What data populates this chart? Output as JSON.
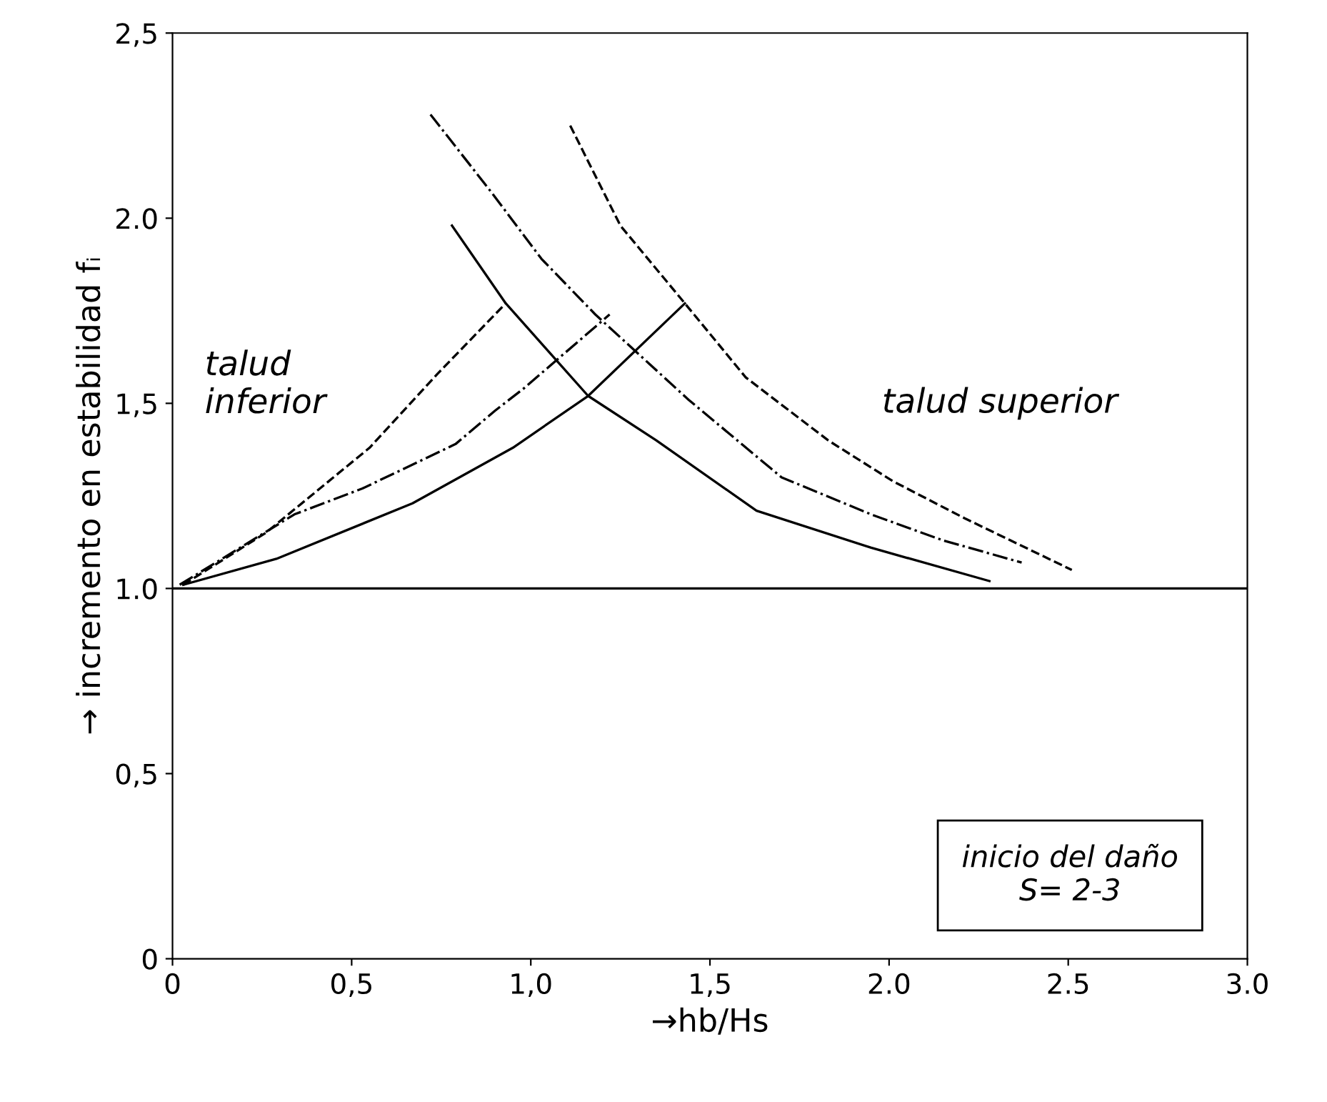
{
  "chart_data": {
    "type": "line",
    "xlabel": "→hb/Hs",
    "ylabel": "→ incremento en estabilidad fᵢ",
    "xlim": [
      0,
      3.0
    ],
    "ylim": [
      0,
      2.5
    ],
    "xticks": [
      0,
      {
        "value": 0.5,
        "label": "0,5"
      },
      {
        "value": 1.0,
        "label": "1,0"
      },
      {
        "value": 1.5,
        "label": "1,5"
      },
      {
        "value": 2.0,
        "label": "2.0"
      },
      {
        "value": 2.5,
        "label": "2.5"
      },
      {
        "value": 3.0,
        "label": "3.0"
      }
    ],
    "yticks": [
      0,
      {
        "value": 0.5,
        "label": "0,5"
      },
      {
        "value": 1.0,
        "label": "1.0"
      },
      {
        "value": 1.5,
        "label": "1,5"
      },
      {
        "value": 2.0,
        "label": "2.0"
      },
      {
        "value": 2.5,
        "label": "2,5"
      }
    ],
    "grid": false,
    "legend": false,
    "marker": "none",
    "ref_lines": [
      {
        "axis": "y",
        "value": 1.0,
        "color": "#000000"
      }
    ],
    "annotations": [
      "talud\ninferior",
      "talud superior",
      "inicio del daño\nS= 2-3"
    ],
    "series": [
      {
        "color": "#000000",
        "line_style": "solid",
        "x": [
          0.03,
          0.29,
          0.67,
          0.95,
          1.16,
          1.43
        ],
        "values": [
          1.01,
          1.08,
          1.23,
          1.38,
          1.52,
          1.77
        ]
      },
      {
        "color": "#000000",
        "line_style": "dashdot",
        "x": [
          0.02,
          0.34,
          0.53,
          0.79,
          0.9,
          0.98,
          1.22
        ],
        "values": [
          1.01,
          1.2,
          1.27,
          1.39,
          1.48,
          1.54,
          1.74
        ]
      },
      {
        "color": "#000000",
        "line_style": "dashed",
        "x": [
          0.03,
          0.26,
          0.55,
          0.74,
          0.93
        ],
        "values": [
          1.01,
          1.15,
          1.38,
          1.58,
          1.77
        ]
      },
      {
        "color": "#000000",
        "line_style": "solid",
        "x": [
          0.78,
          0.93,
          1.16,
          1.35,
          1.63,
          1.95,
          2.28
        ],
        "values": [
          1.98,
          1.77,
          1.52,
          1.4,
          1.21,
          1.11,
          1.02
        ]
      },
      {
        "color": "#000000",
        "line_style": "dashdot",
        "x": [
          0.72,
          0.89,
          1.03,
          1.18,
          1.44,
          1.7,
          1.95,
          2.15,
          2.37
        ],
        "values": [
          2.28,
          2.07,
          1.89,
          1.74,
          1.51,
          1.3,
          1.2,
          1.13,
          1.07
        ]
      },
      {
        "color": "#000000",
        "line_style": "dashed",
        "x": [
          1.11,
          1.25,
          1.43,
          1.6,
          1.83,
          2.01,
          2.21,
          2.51
        ],
        "values": [
          2.25,
          1.98,
          1.77,
          1.57,
          1.4,
          1.29,
          1.19,
          1.05
        ]
      }
    ]
  }
}
